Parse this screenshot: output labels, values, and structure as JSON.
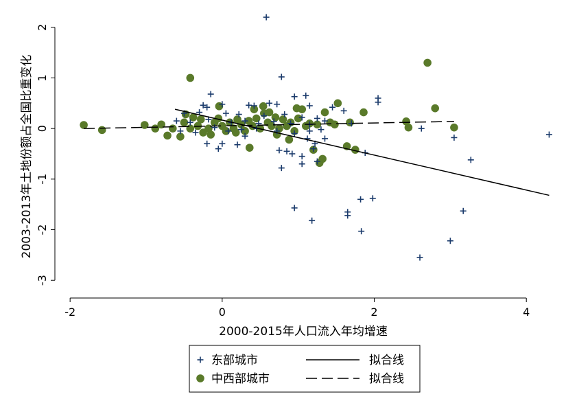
{
  "chart_data": {
    "type": "scatter",
    "xlabel": "2000-2015年人口流入年均增速",
    "ylabel": "2003-2013年土地份额占全国比重变化",
    "xlim": [
      -2.2,
      4.35
    ],
    "ylim": [
      -3.35,
      2.35
    ],
    "xticks": [
      -2,
      0,
      2,
      4
    ],
    "yticks": [
      -3,
      -2,
      -1,
      0,
      1,
      2
    ],
    "grid": false,
    "legend_position": "bottom",
    "colors": {
      "east": "#1a3a6b",
      "central_west": "#5a7a2a",
      "line": "#000000"
    },
    "series": [
      {
        "name": "东部城市",
        "marker": "plus",
        "points": [
          [
            0.58,
            2.2
          ],
          [
            0.78,
            1.02
          ],
          [
            -0.15,
            0.68
          ],
          [
            0.95,
            0.63
          ],
          [
            1.1,
            0.65
          ],
          [
            2.05,
            0.6
          ],
          [
            2.05,
            0.52
          ],
          [
            -0.25,
            0.46
          ],
          [
            -0.2,
            0.42
          ],
          [
            0.0,
            0.48
          ],
          [
            0.35,
            0.46
          ],
          [
            0.42,
            0.45
          ],
          [
            0.62,
            0.5
          ],
          [
            0.72,
            0.48
          ],
          [
            1.15,
            0.45
          ],
          [
            1.45,
            0.42
          ],
          [
            1.6,
            0.35
          ],
          [
            -0.5,
            0.3
          ],
          [
            -0.3,
            0.32
          ],
          [
            0.05,
            0.3
          ],
          [
            0.22,
            0.28
          ],
          [
            0.55,
            0.25
          ],
          [
            0.82,
            0.28
          ],
          [
            1.05,
            0.22
          ],
          [
            1.25,
            0.2
          ],
          [
            -0.6,
            0.15
          ],
          [
            -0.42,
            0.12
          ],
          [
            -0.18,
            0.18
          ],
          [
            0.12,
            0.12
          ],
          [
            0.3,
            0.15
          ],
          [
            0.48,
            0.1
          ],
          [
            0.68,
            0.14
          ],
          [
            0.9,
            0.1
          ],
          [
            1.15,
            0.08
          ],
          [
            1.35,
            0.15
          ],
          [
            1.7,
            0.1
          ],
          [
            -0.55,
            -0.05
          ],
          [
            -0.35,
            -0.08
          ],
          [
            -0.1,
            0.02
          ],
          [
            0.08,
            -0.05
          ],
          [
            0.25,
            -0.02
          ],
          [
            0.45,
            0.0
          ],
          [
            0.72,
            -0.05
          ],
          [
            0.95,
            -0.1
          ],
          [
            1.15,
            -0.05
          ],
          [
            1.3,
            -0.02
          ],
          [
            -0.2,
            -0.3
          ],
          [
            -0.05,
            -0.4
          ],
          [
            0.0,
            -0.3
          ],
          [
            0.2,
            -0.32
          ],
          [
            0.3,
            -0.15
          ],
          [
            0.85,
            -0.45
          ],
          [
            0.92,
            -0.5
          ],
          [
            1.05,
            -0.55
          ],
          [
            1.12,
            -0.2
          ],
          [
            1.22,
            -0.3
          ],
          [
            1.35,
            -0.2
          ],
          [
            0.75,
            -0.43
          ],
          [
            1.05,
            -0.7
          ],
          [
            1.2,
            -0.4
          ],
          [
            1.25,
            -0.65
          ],
          [
            0.78,
            -0.78
          ],
          [
            1.88,
            -0.48
          ],
          [
            2.62,
            0.0
          ],
          [
            3.05,
            -0.18
          ],
          [
            3.27,
            -0.62
          ],
          [
            4.3,
            -0.12
          ],
          [
            0.95,
            -1.57
          ],
          [
            1.18,
            -1.82
          ],
          [
            1.65,
            -1.65
          ],
          [
            1.65,
            -1.72
          ],
          [
            1.82,
            -1.4
          ],
          [
            1.98,
            -1.38
          ],
          [
            1.83,
            -2.03
          ],
          [
            2.6,
            -2.55
          ],
          [
            3.0,
            -2.22
          ],
          [
            3.17,
            -1.63
          ]
        ]
      },
      {
        "name": "中西部城市",
        "marker": "circle",
        "points": [
          [
            -1.82,
            0.07
          ],
          [
            -1.58,
            -0.03
          ],
          [
            -1.02,
            0.07
          ],
          [
            -0.88,
            0.0
          ],
          [
            -0.8,
            0.08
          ],
          [
            -0.72,
            -0.14
          ],
          [
            -0.65,
            0.0
          ],
          [
            -0.55,
            -0.16
          ],
          [
            -0.5,
            0.12
          ],
          [
            -0.48,
            0.28
          ],
          [
            -0.42,
            0.0
          ],
          [
            -0.38,
            0.22
          ],
          [
            -0.32,
            0.05
          ],
          [
            -0.25,
            -0.08
          ],
          [
            -0.18,
            0.0
          ],
          [
            -0.1,
            0.12
          ],
          [
            -0.05,
            0.2
          ],
          [
            0.0,
            0.05
          ],
          [
            0.05,
            -0.05
          ],
          [
            0.1,
            0.12
          ],
          [
            0.15,
            0.0
          ],
          [
            0.2,
            0.18
          ],
          [
            0.25,
            0.08
          ],
          [
            0.3,
            -0.05
          ],
          [
            0.35,
            0.15
          ],
          [
            0.4,
            0.05
          ],
          [
            0.45,
            0.2
          ],
          [
            0.5,
            0.0
          ],
          [
            0.55,
            0.3
          ],
          [
            0.6,
            0.12
          ],
          [
            0.65,
            0.05
          ],
          [
            0.7,
            0.22
          ],
          [
            0.75,
            0.0
          ],
          [
            0.8,
            0.18
          ],
          [
            0.85,
            0.05
          ],
          [
            0.9,
            0.12
          ],
          [
            0.95,
            -0.05
          ],
          [
            1.0,
            0.2
          ],
          [
            1.05,
            0.38
          ],
          [
            1.1,
            0.05
          ],
          [
            1.15,
            0.1
          ],
          [
            -0.04,
            0.44
          ],
          [
            0.54,
            0.44
          ],
          [
            0.36,
            -0.38
          ],
          [
            1.2,
            -0.42
          ],
          [
            1.25,
            0.08
          ],
          [
            1.28,
            -0.68
          ],
          [
            1.32,
            -0.6
          ],
          [
            1.35,
            0.32
          ],
          [
            1.48,
            0.08
          ],
          [
            1.52,
            0.5
          ],
          [
            1.64,
            -0.35
          ],
          [
            1.75,
            -0.42
          ],
          [
            1.68,
            0.12
          ],
          [
            1.86,
            0.32
          ],
          [
            2.42,
            0.14
          ],
          [
            2.45,
            0.02
          ],
          [
            2.7,
            1.3
          ],
          [
            2.8,
            0.4
          ],
          [
            3.05,
            0.02
          ],
          [
            -0.42,
            1.0
          ],
          [
            0.88,
            -0.22
          ],
          [
            0.62,
            0.32
          ],
          [
            -0.28,
            0.18
          ],
          [
            0.18,
            -0.08
          ],
          [
            0.72,
            -0.12
          ],
          [
            0.42,
            0.38
          ],
          [
            -0.15,
            -0.12
          ],
          [
            0.98,
            0.4
          ],
          [
            1.42,
            0.12
          ]
        ]
      }
    ],
    "fit_lines": [
      {
        "name": "拟合线",
        "style": "solid",
        "x": [
          -0.62,
          4.3
        ],
        "y": [
          0.38,
          -1.32
        ]
      },
      {
        "name": "拟合线",
        "style": "dashed",
        "x": [
          -1.82,
          3.05
        ],
        "y": [
          0.0,
          0.14
        ]
      }
    ],
    "legend": [
      {
        "label": "东部城市",
        "marker": "plus"
      },
      {
        "label": "拟合线",
        "line": "solid"
      },
      {
        "label": "中西部城市",
        "marker": "circle"
      },
      {
        "label": "拟合线",
        "line": "dashed"
      }
    ]
  }
}
